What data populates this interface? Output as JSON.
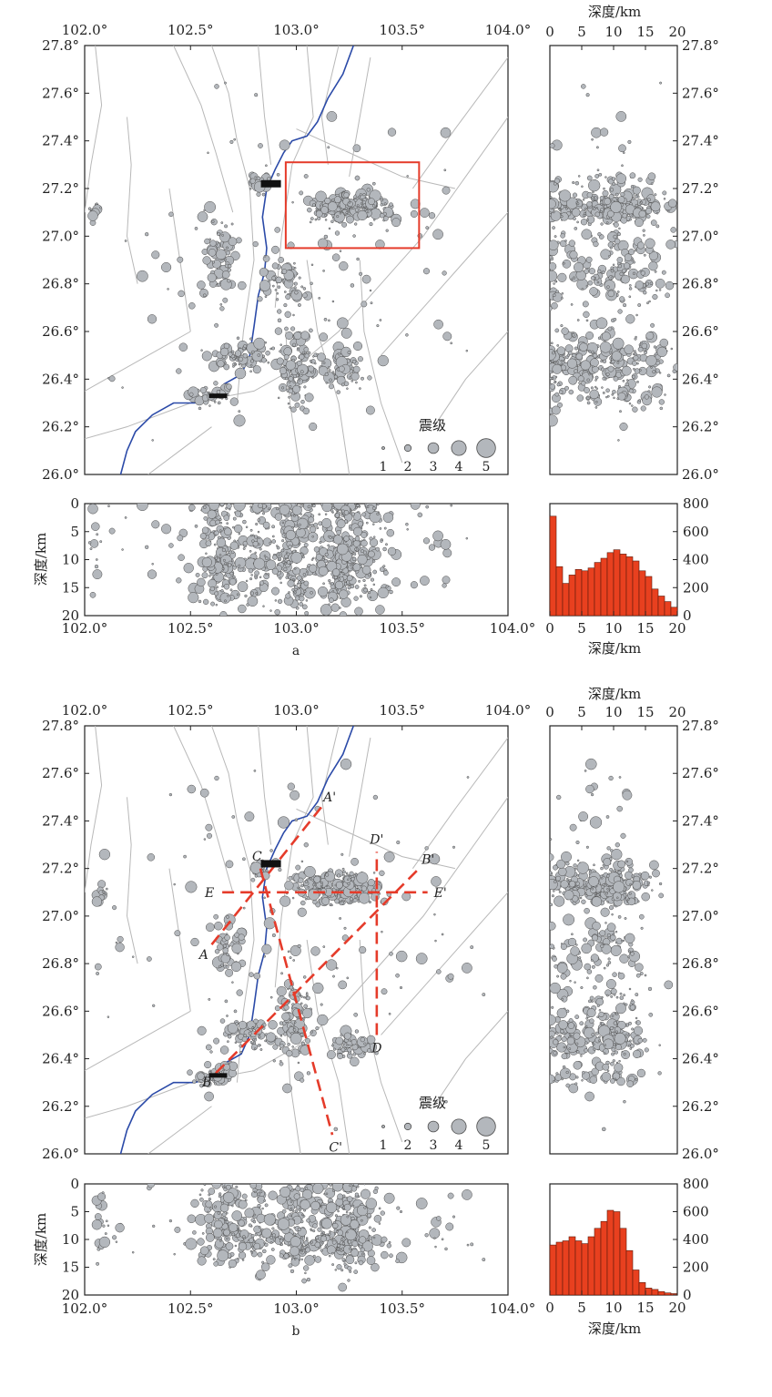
{
  "panels": [
    {
      "id": "a",
      "caption": "a",
      "map": {
        "lon_ticks": [
          "102.0°",
          "102.5°",
          "103.0°",
          "103.5°",
          "104.0°"
        ],
        "lat_ticks": [
          "27.8°",
          "27.6°",
          "27.4°",
          "27.2°",
          "27.0°",
          "26.8°",
          "26.6°",
          "26.4°",
          "26.2°",
          "26.0°"
        ],
        "highlight_box": {
          "lon_min": 102.95,
          "lon_max": 103.58,
          "lat_min": 26.95,
          "lat_max": 27.31
        },
        "legend": {
          "title": "震级",
          "labels": [
            "1",
            "2",
            "3",
            "4",
            "5"
          ]
        }
      },
      "depth_axis_title": "深度/km",
      "depth_ticks": [
        "0",
        "5",
        "10",
        "15",
        "20"
      ],
      "hist_y_ticks": [
        "800",
        "600",
        "400",
        "200",
        "0"
      ],
      "lon_end_label": "104.0°"
    },
    {
      "id": "b",
      "caption": "b",
      "map": {
        "lon_ticks": [
          "102.0°",
          "102.5°",
          "103.0°",
          "103.5°",
          "104.0°"
        ],
        "lat_ticks": [
          "27.8°",
          "27.6°",
          "27.4°",
          "27.2°",
          "27.0°",
          "26.8°",
          "26.6°",
          "26.4°",
          "26.2°",
          "26.0°"
        ],
        "profiles": [
          {
            "start": "A",
            "end": "A'",
            "from": [
              102.6,
              26.88
            ],
            "to": [
              103.12,
              27.46
            ]
          },
          {
            "start": "B",
            "end": "B'",
            "from": [
              102.62,
              26.34
            ],
            "to": [
              103.58,
              27.2
            ]
          },
          {
            "start": "C",
            "end": "C'",
            "from": [
              102.83,
              27.2
            ],
            "to": [
              103.17,
              26.08
            ]
          },
          {
            "start": "D",
            "end": "D'",
            "from": [
              103.38,
              26.5
            ],
            "to": [
              103.38,
              27.27
            ]
          },
          {
            "start": "E",
            "end": "E'",
            "from": [
              102.65,
              27.1
            ],
            "to": [
              103.62,
              27.1
            ]
          }
        ],
        "legend": {
          "title": "震级",
          "labels": [
            "1",
            "2",
            "3",
            "4",
            "5"
          ]
        }
      },
      "depth_axis_title": "深度/km",
      "depth_ticks": [
        "0",
        "5",
        "10",
        "15",
        "20"
      ],
      "hist_y_ticks": [
        "800",
        "600",
        "400",
        "200",
        "0"
      ],
      "lon_end_label": "104.0°"
    }
  ],
  "chart_data": [
    {
      "type": "scatter",
      "panel": "a",
      "title": "",
      "xlabel": "",
      "ylabel": "",
      "xlim": [
        102.0,
        104.0
      ],
      "ylim": [
        26.0,
        27.8
      ],
      "marker_size_variable": "震级",
      "magnitude_legend": [
        1,
        2,
        3,
        4,
        5
      ],
      "clusters": [
        {
          "lon": 103.25,
          "lat": 27.12,
          "lon_spread": 0.22,
          "lat_spread": 0.08,
          "count": 230
        },
        {
          "lon": 102.82,
          "lat": 27.22,
          "lon_spread": 0.05,
          "lat_spread": 0.05,
          "count": 30
        },
        {
          "lon": 102.65,
          "lat": 26.9,
          "lon_spread": 0.08,
          "lat_spread": 0.22,
          "count": 70
        },
        {
          "lon": 102.75,
          "lat": 26.5,
          "lon_spread": 0.2,
          "lat_spread": 0.07,
          "count": 90
        },
        {
          "lon": 103.0,
          "lat": 26.45,
          "lon_spread": 0.1,
          "lat_spread": 0.2,
          "count": 110
        },
        {
          "lon": 103.22,
          "lat": 26.45,
          "lon_spread": 0.12,
          "lat_spread": 0.1,
          "count": 70
        },
        {
          "lon": 102.6,
          "lat": 26.33,
          "lon_spread": 0.12,
          "lat_spread": 0.05,
          "count": 40
        },
        {
          "lon": 102.05,
          "lat": 27.1,
          "lon_spread": 0.03,
          "lat_spread": 0.04,
          "count": 12
        },
        {
          "lon": 102.95,
          "lat": 26.8,
          "lon_spread": 0.12,
          "lat_spread": 0.12,
          "count": 60
        },
        {
          "lon": 103.0,
          "lat": 26.9,
          "lon_spread": 1.0,
          "lat_spread": 0.9,
          "count": 140
        }
      ],
      "histogram": {
        "type": "bar",
        "xlabel": "深度/km",
        "xlim": [
          0,
          20
        ],
        "ylim": [
          0,
          800
        ],
        "bin_edges": [
          0,
          1,
          2,
          3,
          4,
          5,
          6,
          7,
          8,
          9,
          10,
          11,
          12,
          13,
          14,
          15,
          16,
          17,
          18,
          19,
          20
        ],
        "counts": [
          710,
          350,
          230,
          290,
          330,
          320,
          340,
          380,
          410,
          450,
          470,
          440,
          420,
          390,
          320,
          280,
          190,
          140,
          100,
          60
        ]
      }
    },
    {
      "type": "scatter",
      "panel": "b",
      "title": "",
      "xlabel": "",
      "ylabel": "",
      "xlim": [
        102.0,
        104.0
      ],
      "ylim": [
        26.0,
        27.8
      ],
      "marker_size_variable": "震级",
      "magnitude_legend": [
        1,
        2,
        3,
        4,
        5
      ],
      "clusters": [
        {
          "lon": 103.2,
          "lat": 27.12,
          "lon_spread": 0.25,
          "lat_spread": 0.08,
          "count": 220
        },
        {
          "lon": 102.82,
          "lat": 27.2,
          "lon_spread": 0.05,
          "lat_spread": 0.05,
          "count": 30
        },
        {
          "lon": 102.68,
          "lat": 26.85,
          "lon_spread": 0.08,
          "lat_spread": 0.2,
          "count": 55
        },
        {
          "lon": 102.8,
          "lat": 26.5,
          "lon_spread": 0.2,
          "lat_spread": 0.07,
          "count": 80
        },
        {
          "lon": 103.0,
          "lat": 26.55,
          "lon_spread": 0.1,
          "lat_spread": 0.25,
          "count": 100
        },
        {
          "lon": 103.25,
          "lat": 26.45,
          "lon_spread": 0.12,
          "lat_spread": 0.08,
          "count": 60
        },
        {
          "lon": 102.6,
          "lat": 26.33,
          "lon_spread": 0.12,
          "lat_spread": 0.05,
          "count": 40
        },
        {
          "lon": 102.08,
          "lat": 27.1,
          "lon_spread": 0.03,
          "lat_spread": 0.05,
          "count": 15
        },
        {
          "lon": 103.0,
          "lat": 26.9,
          "lon_spread": 1.0,
          "lat_spread": 0.9,
          "count": 130
        }
      ],
      "histogram": {
        "type": "bar",
        "xlabel": "深度/km",
        "xlim": [
          0,
          20
        ],
        "ylim": [
          0,
          800
        ],
        "bin_edges": [
          0,
          1,
          2,
          3,
          4,
          5,
          6,
          7,
          8,
          9,
          10,
          11,
          12,
          13,
          14,
          15,
          16,
          17,
          18,
          19,
          20
        ],
        "counts": [
          360,
          380,
          390,
          420,
          390,
          370,
          420,
          480,
          530,
          610,
          600,
          480,
          320,
          180,
          90,
          50,
          40,
          25,
          15,
          10
        ]
      }
    }
  ]
}
